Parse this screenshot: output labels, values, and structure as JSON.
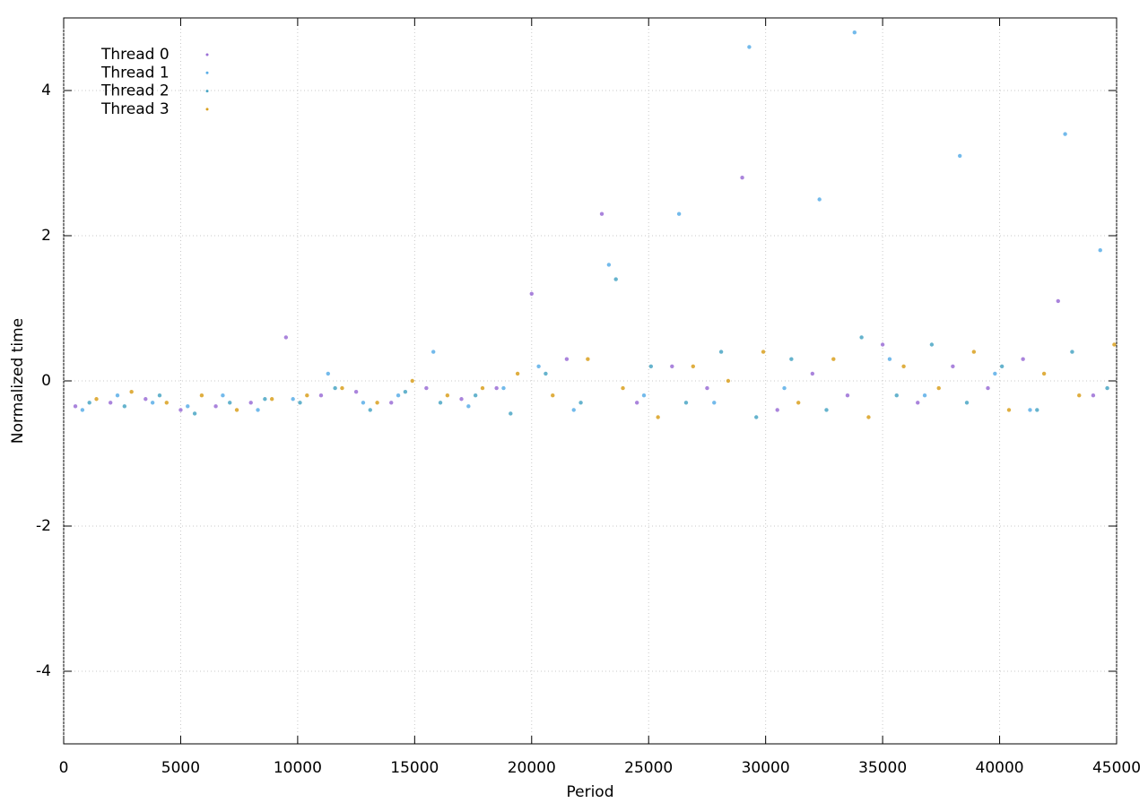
{
  "chart_data": {
    "type": "scatter",
    "x_label": "Period",
    "y_label": "Normalized time",
    "xlim": [
      0,
      45000
    ],
    "ylim": [
      -5,
      5
    ],
    "xticks": [
      0,
      5000,
      10000,
      15000,
      20000,
      25000,
      30000,
      35000,
      40000,
      45000
    ],
    "yticks": [
      -4,
      -2,
      0,
      2,
      4
    ],
    "grid": true,
    "legend": "top-left",
    "series": [
      {
        "name": "Thread 0",
        "color": "#9b6fd6",
        "x": [
          500,
          2000,
          3500,
          5000,
          6500,
          8000,
          9500,
          11000,
          12500,
          14000,
          15500,
          17000,
          18500,
          20000,
          21500,
          23000,
          24500,
          26000,
          27500,
          29000,
          30500,
          32000,
          33500,
          35000,
          36500,
          38000,
          39500,
          41000,
          42500,
          44000
        ],
        "values": [
          -0.35,
          -0.3,
          -0.25,
          -0.4,
          -0.35,
          -0.3,
          0.6,
          -0.2,
          -0.15,
          -0.3,
          -0.1,
          -0.25,
          -0.1,
          1.2,
          0.3,
          2.3,
          -0.3,
          0.2,
          -0.1,
          2.8,
          -0.4,
          0.1,
          -0.2,
          0.5,
          -0.3,
          0.2,
          -0.1,
          0.3,
          1.1,
          -0.2
        ]
      },
      {
        "name": "Thread 1",
        "color": "#5aaee8",
        "x": [
          800,
          2300,
          3800,
          5300,
          6800,
          8300,
          9800,
          11300,
          12800,
          14300,
          15800,
          17300,
          18800,
          20300,
          21800,
          23300,
          24800,
          26300,
          27800,
          29300,
          30800,
          32300,
          33800,
          35300,
          36800,
          38300,
          39800,
          41300,
          42800,
          44300
        ],
        "values": [
          -0.4,
          -0.2,
          -0.3,
          -0.35,
          -0.2,
          -0.4,
          -0.25,
          0.1,
          -0.3,
          -0.2,
          0.4,
          -0.35,
          -0.1,
          0.2,
          -0.4,
          1.6,
          -0.2,
          2.3,
          -0.3,
          4.6,
          -0.1,
          2.5,
          4.8,
          0.3,
          -0.2,
          3.1,
          0.1,
          -0.4,
          3.4,
          1.8
        ]
      },
      {
        "name": "Thread 2",
        "color": "#4aa6c4",
        "x": [
          1100,
          2600,
          4100,
          5600,
          7100,
          8600,
          10100,
          11600,
          13100,
          14600,
          16100,
          17600,
          19100,
          20600,
          22100,
          23600,
          25100,
          26600,
          28100,
          29600,
          31100,
          32600,
          34100,
          35600,
          37100,
          38600,
          40100,
          41600,
          43100,
          44600
        ],
        "values": [
          -0.3,
          -0.35,
          -0.2,
          -0.45,
          -0.3,
          -0.25,
          -0.3,
          -0.1,
          -0.4,
          -0.15,
          -0.3,
          -0.2,
          -0.45,
          0.1,
          -0.3,
          1.4,
          0.2,
          -0.3,
          0.4,
          -0.5,
          0.3,
          -0.4,
          0.6,
          -0.2,
          0.5,
          -0.3,
          0.2,
          -0.4,
          0.4,
          -0.1
        ]
      },
      {
        "name": "Thread 3",
        "color": "#d9a01e",
        "x": [
          1400,
          2900,
          4400,
          5900,
          7400,
          8900,
          10400,
          11900,
          13400,
          14900,
          16400,
          17900,
          19400,
          20900,
          22400,
          23900,
          25400,
          26900,
          28400,
          29900,
          31400,
          32900,
          34400,
          35900,
          37400,
          38900,
          40400,
          41900,
          43400,
          44900
        ],
        "values": [
          -0.25,
          -0.15,
          -0.3,
          -0.2,
          -0.4,
          -0.25,
          -0.2,
          -0.1,
          -0.3,
          0.0,
          -0.2,
          -0.1,
          0.1,
          -0.2,
          0.3,
          -0.1,
          -0.5,
          0.2,
          0.0,
          0.4,
          -0.3,
          0.3,
          -0.5,
          0.2,
          -0.1,
          0.4,
          -0.4,
          0.1,
          -0.2,
          0.5
        ]
      }
    ]
  }
}
